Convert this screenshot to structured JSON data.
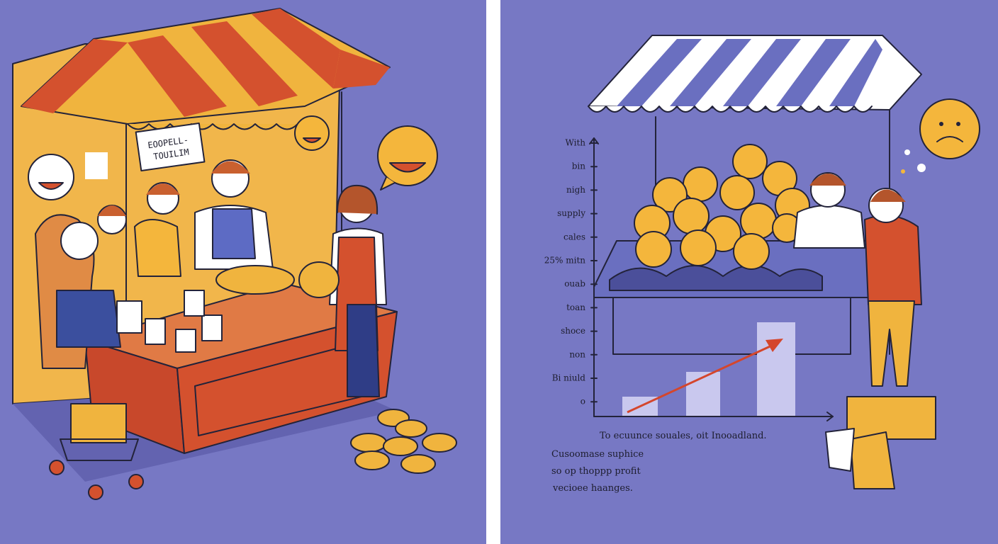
{
  "left_panel": {
    "sign": [
      "EOOPELL-",
      "TOUILIM"
    ]
  },
  "right_panel": {
    "axis_labels": [
      "With",
      "bin",
      "nigh",
      "supply",
      "cales",
      "25% mitn",
      "ouab",
      "toan",
      "shoce",
      "non",
      "Bi niuld",
      "o"
    ],
    "caption": "To ecuunce souales, oit Inooadland.",
    "note": [
      "Cusoomase suphice",
      "so op thoppp profit",
      "vecioee haanges."
    ]
  }
}
